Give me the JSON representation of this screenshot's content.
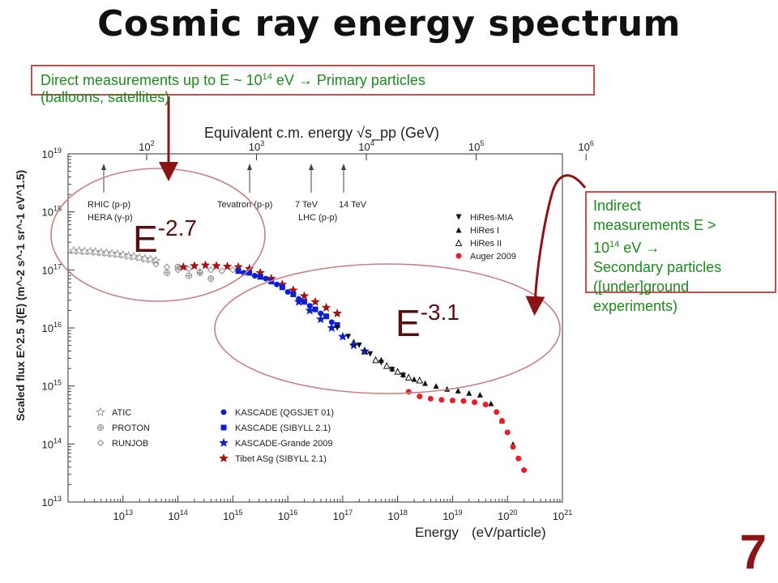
{
  "slide": {
    "title": "Cosmic ray energy spectrum",
    "page_number": "7"
  },
  "callouts": {
    "direct": {
      "text_before": "Direct measurements up to E ~ 10",
      "exponent": "14",
      "text_after": " eV → Primary particles",
      "line2": "(balloons, satellites)"
    },
    "indirect": {
      "line1": "Indirect",
      "line2_before": "measurements E >",
      "line3_base": "10",
      "line3_exp": "14",
      "line3_after": " eV →",
      "line4": "Secondary particles",
      "line5": "([under]ground",
      "line6": "experiments)"
    }
  },
  "annotations": {
    "slope_low": {
      "base": "E",
      "exp": "-2.7"
    },
    "slope_high": {
      "base": "E",
      "exp": "-3.1"
    }
  },
  "colors": {
    "callout_border": "#c0504d",
    "callout_text": "#1a8c1a",
    "arrow": "#8b1515",
    "ellipse": "#c98080",
    "auger": "#ee1c24",
    "kascade": "#0a1fd6",
    "tibet": "#a31515",
    "gray_marker": "#8a8a8a",
    "page_number": "#8b1515"
  },
  "chart_data": {
    "type": "scatter",
    "xlabel_parts": [
      "Energy",
      "(eV/particle)"
    ],
    "ylabel": "Scaled flux  E^2.5 J(E)  (m^-2 s^-1 sr^-1 eV^1.5)",
    "xscale": "log",
    "yscale": "log",
    "xlim": [
      1000000000000.0,
      1e+21
    ],
    "ylim": [
      10000000000000.0,
      1e+19
    ],
    "x_ticks": [
      {
        "base": "10",
        "exp": "13",
        "value": 13
      },
      {
        "base": "10",
        "exp": "14",
        "value": 14
      },
      {
        "base": "10",
        "exp": "15",
        "value": 15
      },
      {
        "base": "10",
        "exp": "16",
        "value": 16
      },
      {
        "base": "10",
        "exp": "17",
        "value": 17
      },
      {
        "base": "10",
        "exp": "18",
        "value": 18
      },
      {
        "base": "10",
        "exp": "19",
        "value": 19
      },
      {
        "base": "10",
        "exp": "20",
        "value": 20
      },
      {
        "base": "10",
        "exp": "21",
        "value": 21
      }
    ],
    "y_ticks": [
      {
        "base": "10",
        "exp": "13",
        "value": 13
      },
      {
        "base": "10",
        "exp": "14",
        "value": 14
      },
      {
        "base": "10",
        "exp": "15",
        "value": 15
      },
      {
        "base": "10",
        "exp": "16",
        "value": 16
      },
      {
        "base": "10",
        "exp": "17",
        "value": 17
      },
      {
        "base": "10",
        "exp": "18",
        "value": 18
      },
      {
        "base": "10",
        "exp": "19",
        "value": 19
      }
    ],
    "top_axis": {
      "label": "Equivalent c.m. energy  √s_pp  (GeV)",
      "ticks": [
        {
          "base": "10",
          "exp": "2",
          "value": 2
        },
        {
          "base": "10",
          "exp": "3",
          "value": 3
        },
        {
          "base": "10",
          "exp": "4",
          "value": 4
        },
        {
          "base": "10",
          "exp": "5",
          "value": 5
        },
        {
          "base": "10",
          "exp": "6",
          "value": 6
        }
      ]
    },
    "accelerator_markers": [
      {
        "label": "RHIC (p-p)",
        "log_e": 13.3
      },
      {
        "label": "HERA (γ-p)",
        "log_e": 13.55
      },
      {
        "label": "Tevatron (p-p)",
        "log_e": 15.3
      },
      {
        "label": "7 TeV",
        "log_e": 16.4
      },
      {
        "label": "14 TeV",
        "log_e": 17.0
      }
    ],
    "accelerator_group_label": "LHC (p-p)",
    "legend_left": [
      {
        "name": "ATIC",
        "marker": "star-open"
      },
      {
        "name": "PROTON",
        "marker": "circle-cross"
      },
      {
        "name": "RUNJOB",
        "marker": "diamond-open"
      }
    ],
    "legend_center": [
      {
        "name": "KASCADE (QGSJET 01)",
        "marker": "circle"
      },
      {
        "name": "KASCADE (SIBYLL 2.1)",
        "marker": "square"
      },
      {
        "name": "KASCADE-Grande 2009",
        "marker": "star"
      },
      {
        "name": "Tibet ASg (SIBYLL 2.1)",
        "marker": "star-red"
      }
    ],
    "legend_right": [
      {
        "name": "HiRes-MIA",
        "marker": "triangle-down"
      },
      {
        "name": "HiRes I",
        "marker": "triangle-up"
      },
      {
        "name": "HiRes II",
        "marker": "triangle-open"
      },
      {
        "name": "Auger 2009",
        "marker": "circle-red"
      }
    ],
    "series": [
      {
        "name": "ATIC",
        "log_x": [
          12.1,
          12.2,
          12.3,
          12.4,
          12.5,
          12.6,
          12.7,
          12.8,
          12.9,
          13.0,
          13.1,
          13.2,
          13.3,
          13.4,
          13.5,
          13.6
        ],
        "log_y": [
          17.33,
          17.33,
          17.32,
          17.32,
          17.31,
          17.3,
          17.29,
          17.28,
          17.27,
          17.26,
          17.24,
          17.23,
          17.21,
          17.19,
          17.18,
          17.16
        ]
      },
      {
        "name": "PROTON",
        "log_x": [
          13.8,
          14.0,
          14.2,
          14.4,
          14.6
        ],
        "log_y": [
          16.95,
          17.05,
          16.9,
          16.95,
          16.85
        ]
      },
      {
        "name": "RUNJOB",
        "log_x": [
          13.6,
          13.8,
          14.0,
          14.2,
          14.4,
          14.6,
          14.8,
          15.0
        ],
        "log_y": [
          17.1,
          17.05,
          17.0,
          17.02,
          16.97,
          17.0,
          16.98,
          17.0
        ]
      },
      {
        "name": "Tibet ASg (SIBYLL 2.1)",
        "log_x": [
          14.1,
          14.3,
          14.5,
          14.7,
          14.9,
          15.1,
          15.3,
          15.5,
          15.7,
          15.9,
          16.1,
          16.3,
          16.5,
          16.7,
          16.9
        ],
        "log_y": [
          17.05,
          17.07,
          17.08,
          17.07,
          17.06,
          17.05,
          17.02,
          16.95,
          16.85,
          16.75,
          16.65,
          16.55,
          16.45,
          16.35,
          16.25
        ]
      },
      {
        "name": "KASCADE (QGSJET 01)",
        "log_x": [
          15.2,
          15.4,
          15.6,
          15.8,
          16.0,
          16.2,
          16.4,
          16.6,
          16.8
        ],
        "log_y": [
          16.95,
          16.9,
          16.85,
          16.75,
          16.62,
          16.5,
          16.38,
          16.25,
          16.1
        ]
      },
      {
        "name": "KASCADE (SIBYLL 2.1)",
        "log_x": [
          15.1,
          15.3,
          15.5,
          15.7,
          15.9,
          16.1,
          16.3,
          16.5,
          16.7,
          16.9
        ],
        "log_y": [
          16.98,
          16.95,
          16.88,
          16.8,
          16.7,
          16.58,
          16.45,
          16.32,
          16.2,
          16.05
        ]
      },
      {
        "name": "KASCADE-Grande 2009",
        "log_x": [
          16.2,
          16.4,
          16.6,
          16.8,
          17.0,
          17.2,
          17.4
        ],
        "log_y": [
          16.45,
          16.3,
          16.15,
          16.0,
          15.85,
          15.7,
          15.6
        ]
      },
      {
        "name": "HiRes-MIA",
        "log_x": [
          16.9,
          17.1,
          17.3,
          17.5,
          17.7,
          17.9,
          18.1
        ],
        "log_y": [
          16.0,
          15.85,
          15.7,
          15.55,
          15.4,
          15.28,
          15.18
        ]
      },
      {
        "name": "HiRes I",
        "log_x": [
          17.7,
          17.9,
          18.1,
          18.3,
          18.5,
          18.7,
          18.9,
          19.1,
          19.3,
          19.5,
          19.7,
          19.9,
          20.1
        ],
        "log_y": [
          15.45,
          15.3,
          15.2,
          15.12,
          15.05,
          15.0,
          14.95,
          14.92,
          14.88,
          14.85,
          14.7,
          14.4,
          14.0
        ]
      },
      {
        "name": "HiRes II",
        "log_x": [
          17.2,
          17.4,
          17.6,
          17.8,
          18.0,
          18.2,
          18.4
        ],
        "log_y": [
          15.75,
          15.6,
          15.45,
          15.35,
          15.25,
          15.15,
          15.1
        ]
      },
      {
        "name": "Auger 2009",
        "log_x": [
          18.2,
          18.4,
          18.6,
          18.8,
          19.0,
          19.2,
          19.4,
          19.6,
          19.8,
          19.9,
          20.0,
          20.1,
          20.2,
          20.3
        ],
        "log_y": [
          14.9,
          14.82,
          14.78,
          14.76,
          14.75,
          14.74,
          14.72,
          14.68,
          14.55,
          14.4,
          14.2,
          13.95,
          13.75,
          13.55
        ]
      }
    ]
  }
}
